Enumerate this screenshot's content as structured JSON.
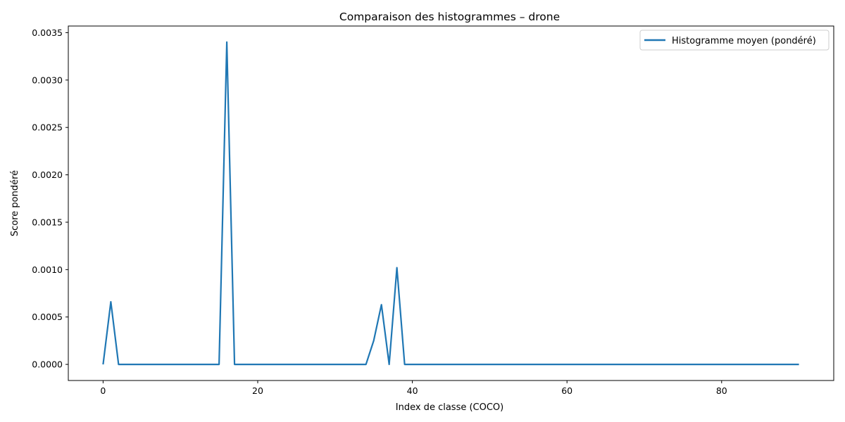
{
  "chart_data": {
    "type": "line",
    "title": "Comparaison des histogrammes – drone",
    "xlabel": "Index de classe (COCO)",
    "ylabel": "Score pondéré",
    "xlim": [
      -4.5,
      94.5
    ],
    "ylim": [
      -0.00017,
      0.00357
    ],
    "xticks": [
      0,
      20,
      40,
      60,
      80
    ],
    "xtick_labels": [
      "0",
      "20",
      "40",
      "60",
      "80"
    ],
    "yticks": [
      0,
      0.0005,
      0.001,
      0.0015,
      0.002,
      0.0025,
      0.003,
      0.0035
    ],
    "ytick_labels": [
      "0.0000",
      "0.0005",
      "0.0010",
      "0.0015",
      "0.0020",
      "0.0025",
      "0.0030",
      "0.0035"
    ],
    "grid": false,
    "legend_position": "top-right",
    "series": [
      {
        "name": "Histogramme moyen (pondéré)",
        "color": "#1f77b4",
        "x": [
          0,
          1,
          2,
          3,
          4,
          5,
          6,
          7,
          8,
          9,
          10,
          11,
          12,
          13,
          14,
          15,
          16,
          17,
          18,
          19,
          20,
          21,
          22,
          23,
          24,
          25,
          26,
          27,
          28,
          29,
          30,
          31,
          32,
          33,
          34,
          35,
          36,
          37,
          38,
          39,
          40,
          41,
          42,
          43,
          44,
          45,
          46,
          47,
          48,
          49,
          50,
          51,
          52,
          53,
          54,
          55,
          56,
          57,
          58,
          59,
          60,
          61,
          62,
          63,
          64,
          65,
          66,
          67,
          68,
          69,
          70,
          71,
          72,
          73,
          74,
          75,
          76,
          77,
          78,
          79,
          80,
          81,
          82,
          83,
          84,
          85,
          86,
          87,
          88,
          89,
          90
        ],
        "y": [
          0,
          0.00066,
          0,
          0,
          0,
          0,
          0,
          0,
          0,
          0,
          0,
          0,
          0,
          0,
          0,
          0,
          0.0034,
          0,
          0,
          0,
          0,
          0,
          0,
          0,
          0,
          0,
          0,
          0,
          0,
          0,
          0,
          0,
          0,
          0,
          0,
          0.00025,
          0.00063,
          0,
          0.00102,
          0,
          0,
          0,
          0,
          0,
          0,
          0,
          0,
          0,
          0,
          0,
          0,
          0,
          0,
          0,
          0,
          0,
          0,
          0,
          0,
          0,
          0,
          0,
          0,
          0,
          0,
          0,
          0,
          0,
          0,
          0,
          0,
          0,
          0,
          0,
          0,
          0,
          0,
          0,
          0,
          0,
          0,
          0,
          0,
          0,
          0,
          0,
          0,
          0,
          0,
          0,
          0
        ]
      }
    ]
  }
}
